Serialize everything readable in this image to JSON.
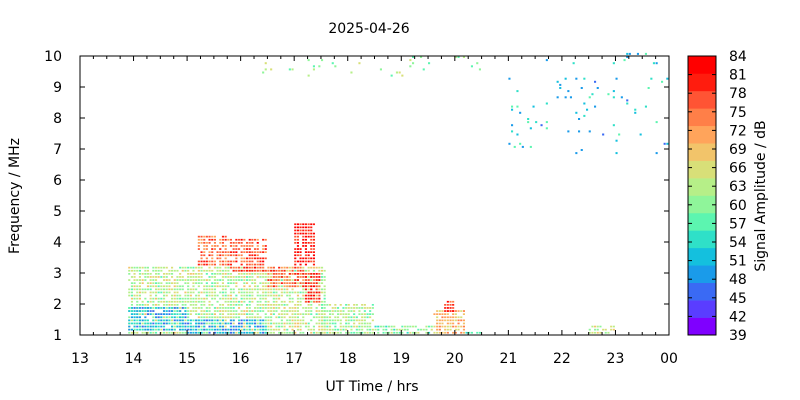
{
  "chart_data": {
    "type": "heatmap",
    "title": "2025-04-26",
    "xlabel": "UT Time / hrs",
    "ylabel": "Frequency / MHz",
    "colorbar_label": "Signal Amplitude / dB",
    "x_ticks": [
      "13",
      "14",
      "15",
      "16",
      "17",
      "18",
      "19",
      "20",
      "21",
      "22",
      "23",
      "00"
    ],
    "xlim": [
      13,
      24
    ],
    "y_ticks": [
      "1",
      "2",
      "3",
      "4",
      "5",
      "6",
      "7",
      "8",
      "9",
      "10"
    ],
    "ylim": [
      1,
      10
    ],
    "colorbar_ticks": [
      "39",
      "42",
      "45",
      "48",
      "51",
      "54",
      "57",
      "60",
      "63",
      "66",
      "69",
      "72",
      "75",
      "78",
      "81",
      "84"
    ],
    "colorbar_range": [
      39,
      84
    ],
    "colormap": [
      "#7f00ff",
      "#5a3dff",
      "#3a6af4",
      "#1a9bea",
      "#14c0de",
      "#2fe0c8",
      "#5cf5b0",
      "#8ff59a",
      "#b6ef88",
      "#d8df78",
      "#f2c46a",
      "#ffa45b",
      "#ff7f48",
      "#ff5434",
      "#ff1c0e",
      "#ff0000"
    ],
    "regions": [
      {
        "t0": 13.9,
        "t1": 17.6,
        "f0": 1.0,
        "f1": 3.2,
        "amp": 63
      },
      {
        "t0": 13.9,
        "t1": 15.0,
        "f0": 1.1,
        "f1": 1.9,
        "amp": 51
      },
      {
        "t0": 15.0,
        "t1": 16.5,
        "f0": 1.0,
        "f1": 1.5,
        "amp": 50
      },
      {
        "t0": 15.2,
        "t1": 15.8,
        "f0": 3.2,
        "f1": 4.2,
        "amp": 75
      },
      {
        "t0": 15.8,
        "t1": 16.5,
        "f0": 3.0,
        "f1": 4.1,
        "amp": 77
      },
      {
        "t0": 16.5,
        "t1": 17.2,
        "f0": 2.5,
        "f1": 3.2,
        "amp": 76
      },
      {
        "t0": 17.0,
        "t1": 17.4,
        "f0": 3.2,
        "f1": 4.5,
        "amp": 81
      },
      {
        "t0": 17.2,
        "t1": 17.5,
        "f0": 2.0,
        "f1": 3.0,
        "amp": 80
      },
      {
        "t0": 17.5,
        "t1": 18.5,
        "f0": 1.0,
        "f1": 2.0,
        "amp": 62
      },
      {
        "t0": 18.5,
        "t1": 19.6,
        "f0": 1.0,
        "f1": 1.3,
        "amp": 60
      },
      {
        "t0": 19.6,
        "t1": 20.2,
        "f0": 1.0,
        "f1": 1.8,
        "amp": 70
      },
      {
        "t0": 19.8,
        "t1": 20.0,
        "f0": 1.7,
        "f1": 2.1,
        "amp": 80
      },
      {
        "t0": 20.2,
        "t1": 20.5,
        "f0": 1.0,
        "f1": 1.1,
        "amp": 55
      },
      {
        "t0": 22.5,
        "t1": 23.0,
        "f0": 1.0,
        "f1": 1.3,
        "amp": 64
      },
      {
        "t0": 16.4,
        "t1": 19.2,
        "f0": 9.3,
        "f1": 9.8,
        "amp": 62
      },
      {
        "t0": 19.0,
        "t1": 21.0,
        "f0": 9.5,
        "f1": 9.9,
        "amp": 60
      },
      {
        "t0": 21.0,
        "t1": 23.8,
        "f0": 9.7,
        "f1": 10.0,
        "amp": 52
      },
      {
        "t0": 21.0,
        "t1": 24.0,
        "f0": 6.8,
        "f1": 9.2,
        "amp": 52
      }
    ]
  }
}
